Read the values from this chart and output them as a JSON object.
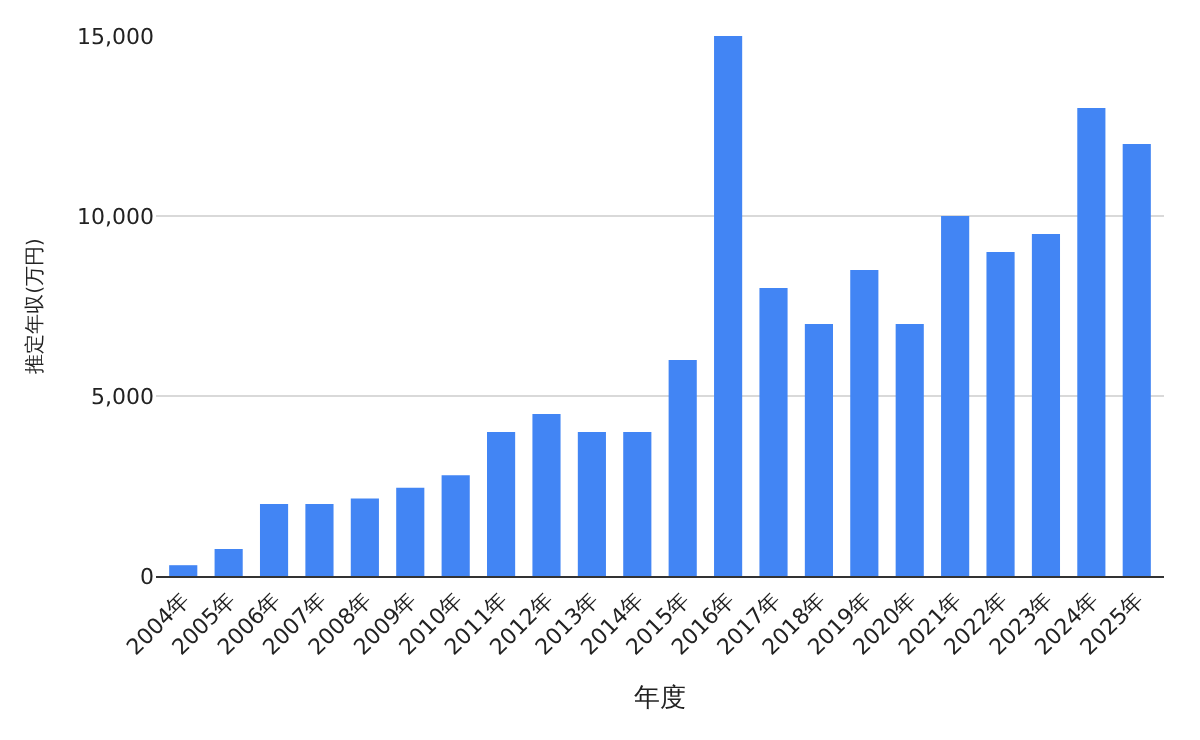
{
  "chart_data": {
    "type": "bar",
    "xlabel": "年度",
    "ylabel": "推定年収(万円)",
    "categories": [
      "2004年",
      "2005年",
      "2006年",
      "2007年",
      "2008年",
      "2009年",
      "2010年",
      "2011年",
      "2012年",
      "2013年",
      "2014年",
      "2015年",
      "2016年",
      "2017年",
      "2018年",
      "2019年",
      "2020年",
      "2021年",
      "2022年",
      "2023年",
      "2024年",
      "2025年"
    ],
    "values": [
      300,
      750,
      2000,
      2000,
      2150,
      2450,
      2800,
      4000,
      4500,
      4000,
      4000,
      6000,
      15000,
      8000,
      7000,
      8500,
      7000,
      10000,
      9000,
      9500,
      13000,
      12000
    ],
    "color": "#4285f4",
    "ylim": [
      0,
      15000
    ],
    "yticks": [
      {
        "value": 0,
        "label": "0"
      },
      {
        "value": 5000,
        "label": "5,000"
      },
      {
        "value": 10000,
        "label": "10,000"
      },
      {
        "value": 15000,
        "label": "15,000"
      }
    ],
    "grid": "y"
  }
}
